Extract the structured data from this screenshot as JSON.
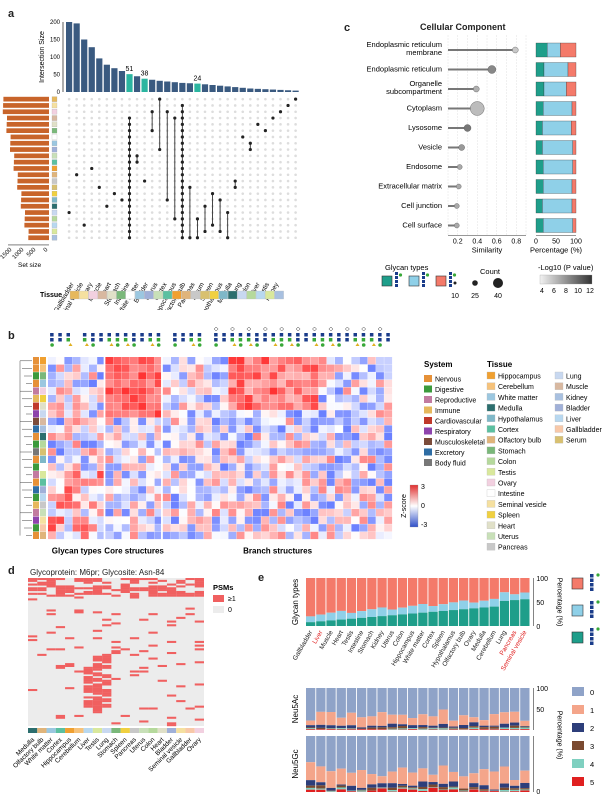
{
  "panels": {
    "a": {
      "label": "a",
      "ylabel_top": "Intersection Size",
      "yticks_top": [
        "200",
        "150",
        "100",
        "50",
        "0"
      ],
      "set_size_label": "Set size",
      "set_size_ticks": [
        "1500",
        "1000",
        "500",
        "0"
      ],
      "tissue_label": "Tissue",
      "annotations": [
        "51",
        "38",
        "24"
      ],
      "tissues": [
        "Gallbladder",
        "Seminal vesicle",
        "Ovary",
        "Muscle",
        "Heart",
        "Stomach",
        "Intestine",
        "White matter",
        "Bladder",
        "Uterus",
        "Cortex",
        "Hippocampus",
        "Olfactory bulb",
        "Pancreas",
        "Serum",
        "Spleen",
        "Hypothalamus",
        "Medulla",
        "Lung",
        "Colon",
        "Liver",
        "Testis",
        "Kidney"
      ]
    },
    "b": {
      "label": "b",
      "groups": [
        "Glycan types",
        "Core structures",
        "Branch structures"
      ],
      "zscore_label": "Z-score",
      "zscore_ticks": [
        "3",
        "0",
        "-3"
      ],
      "system_title": "System",
      "system_items": [
        {
          "name": "Nervous",
          "color": "#e69138"
        },
        {
          "name": "Digestive",
          "color": "#3c9a3c"
        },
        {
          "name": "Reproductive",
          "color": "#c27ba0"
        },
        {
          "name": "Immune",
          "color": "#e6b85c"
        },
        {
          "name": "Cardiovascular",
          "color": "#c0392b"
        },
        {
          "name": "Respiratory",
          "color": "#8e44ad"
        },
        {
          "name": "Musculoskeletal",
          "color": "#7b4b3a"
        },
        {
          "name": "Excretory",
          "color": "#2e6da4"
        },
        {
          "name": "Body fluid",
          "color": "#777777"
        }
      ],
      "tissue_title": "Tissue",
      "tissue_items_col1": [
        {
          "name": "Hippocampus",
          "color": "#f0a030"
        },
        {
          "name": "Cerebellum",
          "color": "#f6c27a"
        },
        {
          "name": "White matter",
          "color": "#9bc7e0"
        },
        {
          "name": "Medulla",
          "color": "#2c6e6e"
        },
        {
          "name": "Hypothalamus",
          "color": "#7fb8c8"
        },
        {
          "name": "Cortex",
          "color": "#5bc0a0"
        },
        {
          "name": "Olfactory bulb",
          "color": "#e0b47a"
        },
        {
          "name": "Stomach",
          "color": "#7ab87a"
        },
        {
          "name": "Colon",
          "color": "#b5d99c"
        },
        {
          "name": "Testis",
          "color": "#d9e89c"
        },
        {
          "name": "Ovary",
          "color": "#f2d0e0"
        },
        {
          "name": "Intestine",
          "color": "#ffffff"
        },
        {
          "name": "Seminal vesicle",
          "color": "#f5e0a0"
        },
        {
          "name": "Spleen",
          "color": "#f0d040"
        },
        {
          "name": "Heart",
          "color": "#e0e0c8"
        },
        {
          "name": "Uterus",
          "color": "#c8e0b8"
        },
        {
          "name": "Pancreas",
          "color": "#c8c8c8"
        }
      ],
      "tissue_items_col2": [
        {
          "name": "Lung",
          "color": "#c8d8f0"
        },
        {
          "name": "Muscle",
          "color": "#d8b8a0"
        },
        {
          "name": "Kidney",
          "color": "#a8c0e0"
        },
        {
          "name": "Bladder",
          "color": "#a0b0d8"
        },
        {
          "name": "Liver",
          "color": "#b8d8f0"
        },
        {
          "name": "Gallbladder",
          "color": "#f8c8a8"
        },
        {
          "name": "Serum",
          "color": "#d8c070"
        }
      ]
    },
    "c": {
      "label": "c",
      "title": "Cellular Component",
      "categories": [
        "Endoplasmic reticulum membrane",
        "Endoplasmic reticulum",
        "Organelle subcompartment",
        "Cytoplasm",
        "Lysosome",
        "Vesicle",
        "Endosome",
        "Extracellular matrix",
        "Cell junction",
        "Cell surface"
      ],
      "similarity_label": "Similarity",
      "similarity_ticks": [
        "0.2",
        "0.4",
        "0.6",
        "0.8"
      ],
      "percentage_label": "Percentage (%)",
      "percentage_ticks": [
        "0",
        "50",
        "100"
      ],
      "glycan_types_label": "Glycan types",
      "count_label": "Count",
      "count_ticks": [
        "10",
        "25",
        "40"
      ],
      "pvalue_label": "-Log10 (P value)",
      "pvalue_ticks": [
        "4",
        "6",
        "8",
        "10",
        "12"
      ]
    },
    "d": {
      "label": "d",
      "title": "Glycoprotein: M6pr; Glycosite: Asn-84",
      "psm_label": "PSMs",
      "psm_items": [
        "≥1",
        "0"
      ],
      "tissues": [
        "Medulla",
        "Olfactory bulb",
        "White matter",
        "Cortex",
        "Hippocampus",
        "Cerebellum",
        "Liver",
        "Testis",
        "Lung",
        "Stomach",
        "Spleen",
        "Pancreas",
        "Uterus",
        "Colon",
        "Heart",
        "Bladder",
        "Seminal vesicle",
        "Gallbladder",
        "Ovary"
      ]
    },
    "e": {
      "label": "e",
      "glycan_types_label": "Glycan types",
      "percentage_label": "Percentage (%)",
      "ticks": [
        "100",
        "50",
        "0"
      ],
      "tissues": [
        "Gallbladder",
        "Liver",
        "Muscle",
        "Heart",
        "Testis",
        "Intestine",
        "Stomach",
        "Kidney",
        "Uterus",
        "Colon",
        "Hippocampus",
        "White matter",
        "Cortex",
        "Spleen",
        "Hypothalamus",
        "Olfactory bulb",
        "Ovary",
        "Medulla",
        "Cerebellum",
        "Lung",
        "Pancreas",
        "Seminal vesicle"
      ],
      "red_tissues": [
        "Liver",
        "Pancreas",
        "Seminal vesicle"
      ],
      "neu5ac_label": "Neu5Ac",
      "neu5gc_label": "Neu5Gc",
      "count_legend": [
        {
          "name": "0",
          "color": "#8fa3c8"
        },
        {
          "name": "1",
          "color": "#f4a58a"
        },
        {
          "name": "2",
          "color": "#2d3e7a"
        },
        {
          "name": "3",
          "color": "#7a4a30"
        },
        {
          "name": "4",
          "color": "#7fd0c0"
        },
        {
          "name": "5",
          "color": "#e02020"
        }
      ]
    }
  },
  "colors": {
    "glycan_teal": "#1e9e8a",
    "glycan_blue": "#8fd0e8",
    "glycan_salmon": "#f47a6a",
    "bar_steel": "#3a5a80",
    "bar_orange": "#c8642a",
    "heat_red": "#e03030",
    "heat_blue": "#3050c8"
  }
}
